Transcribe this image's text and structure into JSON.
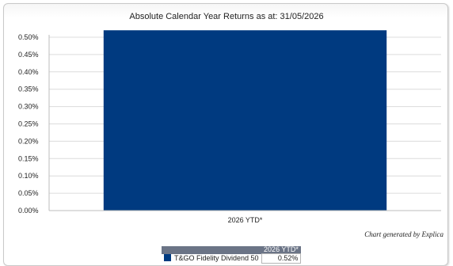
{
  "chart_data": {
    "type": "bar",
    "title": "Absolute Calendar Year Returns as at: 31/05/2026",
    "categories": [
      "2026 YTD*"
    ],
    "series": [
      {
        "name": "T&GO Fidelity Dividend 50",
        "values": [
          0.52
        ],
        "color": "#003a80"
      }
    ],
    "ylim": [
      0,
      0.5
    ],
    "yticks": [
      "0.00%",
      "0.05%",
      "0.10%",
      "0.15%",
      "0.20%",
      "0.25%",
      "0.30%",
      "0.35%",
      "0.40%",
      "0.45%",
      "0.50%"
    ],
    "grid": true,
    "credit": "Chart generated by Explica",
    "table": {
      "column_header": "2026 YTD*",
      "rows": [
        {
          "label": "T&GO Fidelity Dividend 50",
          "value": "0.52%"
        }
      ]
    }
  }
}
